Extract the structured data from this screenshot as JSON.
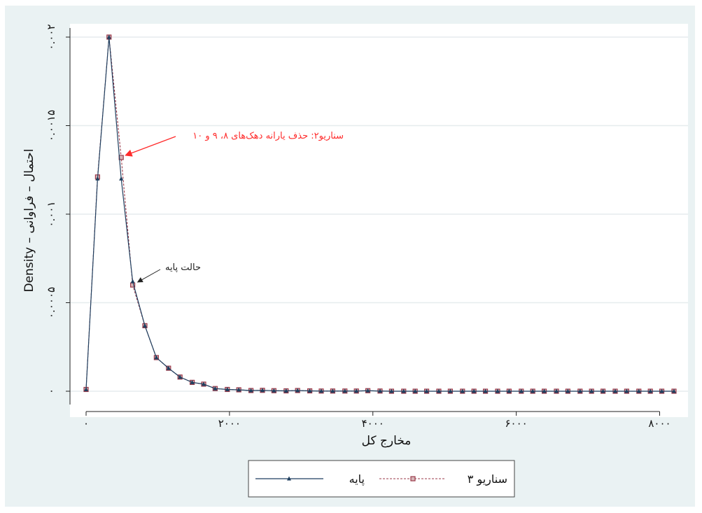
{
  "chart_data": {
    "type": "line",
    "xlabel": "مخارج کل",
    "ylabel": "Density – احتمال – فراوانی",
    "xlim": [
      -50,
      8270
    ],
    "ylim": [
      0,
      0.002
    ],
    "x_ticks": [
      0,
      2000,
      4000,
      6000,
      8000
    ],
    "x_tick_labels": [
      "۰",
      "۲۰۰۰",
      "۴۰۰۰",
      "۶۰۰۰",
      "۸۰۰۰"
    ],
    "y_ticks": [
      0,
      0.0005,
      0.001,
      0.0015,
      0.002
    ],
    "y_tick_labels": [
      "۰",
      "۰.۰۰۰۵",
      "۰.۰۰۱",
      "۰.۰۰۱۵",
      "۰.۰۰۲"
    ],
    "grid": true,
    "legend_position": "bottom",
    "x": [
      0,
      160,
      320,
      490,
      650,
      820,
      980,
      1150,
      1310,
      1480,
      1640,
      1800,
      1970,
      2130,
      2300,
      2460,
      2620,
      2790,
      2950,
      3120,
      3280,
      3440,
      3610,
      3770,
      3930,
      4100,
      4260,
      4430,
      4590,
      4750,
      4920,
      5080,
      5250,
      5410,
      5570,
      5740,
      5900,
      6070,
      6230,
      6390,
      6560,
      6720,
      6890,
      7050,
      7210,
      7380,
      7540,
      7710,
      7870,
      8030,
      8200
    ],
    "series": [
      {
        "name": "پایه",
        "color": "#1f3f5f",
        "marker": "triangle",
        "line_style": "solid",
        "values": [
          1e-05,
          0.0012,
          0.002,
          0.0012,
          0.00062,
          0.00037,
          0.00019,
          0.00013,
          8e-05,
          5e-05,
          4e-05,
          1.5e-05,
          1e-05,
          8e-06,
          4e-06,
          5e-06,
          3e-06,
          2e-06,
          4e-06,
          2e-06,
          1e-06,
          1e-06,
          1e-06,
          1e-06,
          3e-06,
          1e-06,
          0,
          0,
          0,
          0,
          0,
          0,
          0,
          0,
          0,
          0,
          0,
          0,
          0,
          0,
          0,
          0,
          0,
          0,
          0,
          0,
          0,
          0,
          0,
          0,
          0
        ]
      },
      {
        "name": "سناریو ۳",
        "color": "#9b3a4a",
        "marker": "square",
        "line_style": "dashed",
        "values": [
          1e-05,
          0.00121,
          0.002,
          0.00132,
          0.0006,
          0.00037,
          0.00019,
          0.00013,
          8e-05,
          5e-05,
          4e-05,
          1.5e-05,
          1e-05,
          8e-06,
          4e-06,
          5e-06,
          3e-06,
          2e-06,
          4e-06,
          2e-06,
          1e-06,
          1e-06,
          1e-06,
          1e-06,
          3e-06,
          1e-06,
          0,
          0,
          0,
          0,
          0,
          0,
          0,
          0,
          0,
          0,
          0,
          0,
          0,
          0,
          0,
          0,
          0,
          0,
          0,
          0,
          0,
          0,
          0,
          0,
          0
        ]
      }
    ],
    "annotations": [
      {
        "text": "سناریو۲: حذف یارانه دهک‌های ۸، ۹ و ۱۰",
        "color": "#ff2b2b",
        "points_to": [
          490,
          0.00132
        ]
      },
      {
        "text": "حالت پایه",
        "color": "#222222",
        "points_to": [
          650,
          0.00062
        ]
      }
    ]
  }
}
